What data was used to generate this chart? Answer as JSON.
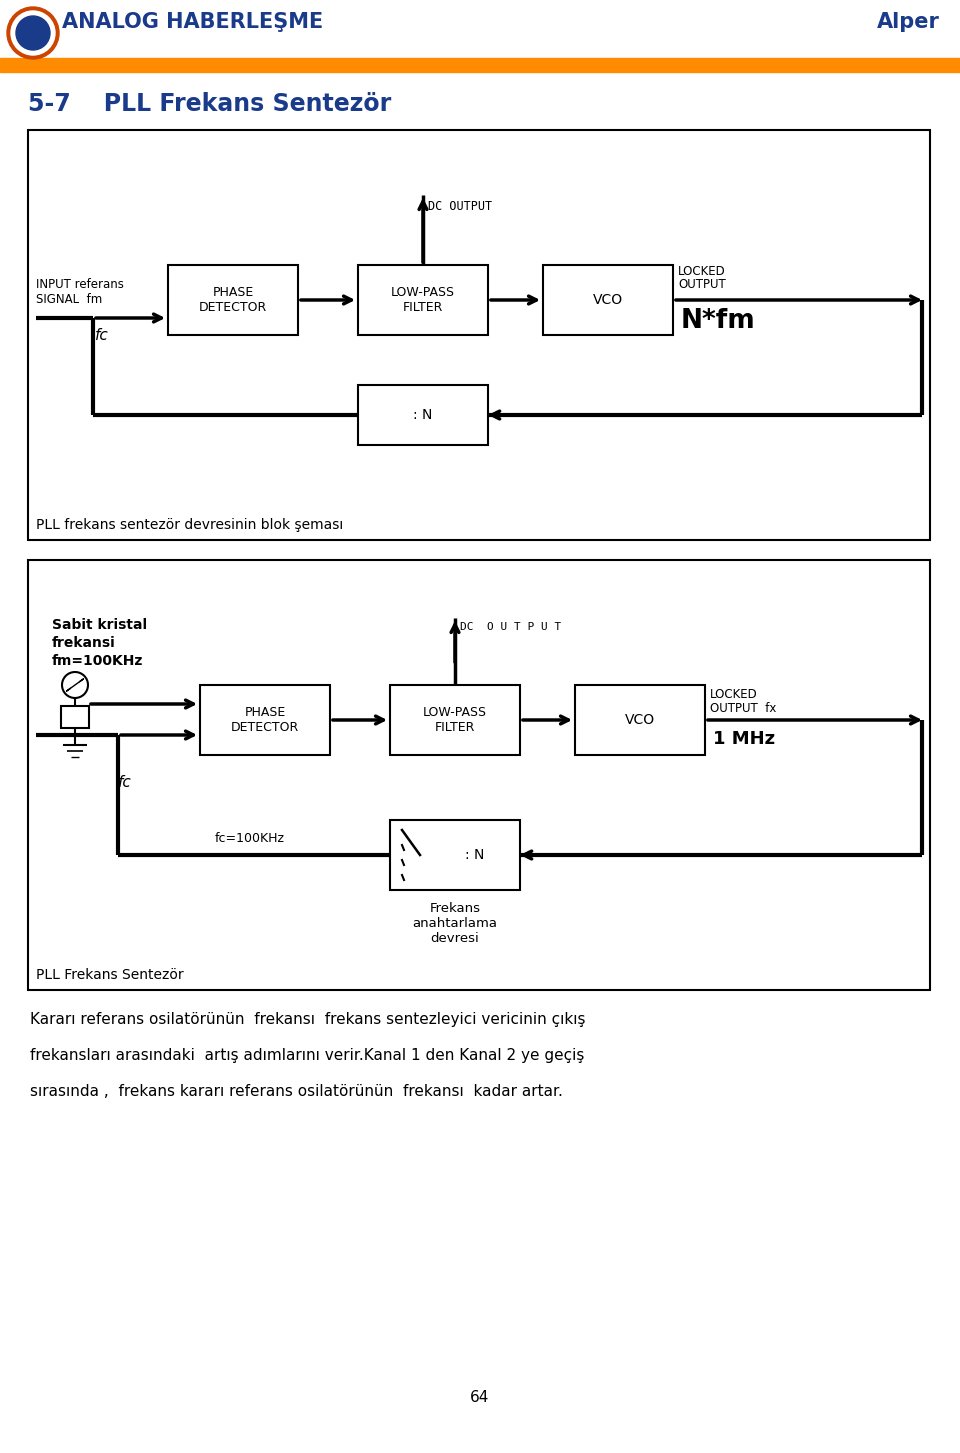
{
  "title": "5-7    PLL Frekans Sentezör",
  "header_title": "ANALOG HABERLEŞME",
  "header_right": "Alper",
  "header_bar_color": "#FF8C00",
  "bg_color": "#FFFFFF",
  "title_color": "#1a3a8a",
  "diagram1_caption": "PLL frekans sentezör devresinin blok şeması",
  "diagram2_caption": "PLL Frekans Sentezör",
  "footer_text1": "Kararı referans osilatörünün  frekansı  frekans sentezleyici vericinin çıkış",
  "footer_text2": "frekansları arasındaki  artış adımlarını verir.Kanal 1 den Kanal 2 ye geçiş",
  "footer_text3": "sırasında ,  frekans kararı referans osilatörünün  frekansı  kadar artar.",
  "page_number": "64"
}
